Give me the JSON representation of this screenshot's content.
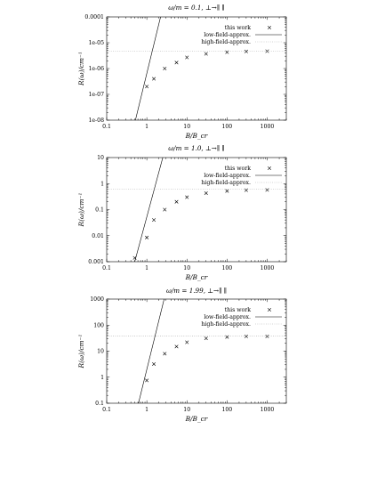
{
  "chart_data": [
    {
      "type": "scatter",
      "title": "ω/m = 0.1, ⊥→∥ ∥",
      "xlabel": "B/B_cr",
      "ylabel": "R(ω)/cm⁻¹",
      "xscale": "log",
      "yscale": "log",
      "xlim": [
        0.1,
        3000
      ],
      "ylim": [
        1e-08,
        0.0001
      ],
      "x_ticks": [
        "0.1",
        "1",
        "10",
        "100",
        "1000"
      ],
      "y_ticks": [
        "1e-08",
        "1e-07",
        "1e-06",
        "1e-05",
        "0.0001"
      ],
      "legend_position": "top-right",
      "series": [
        {
          "name": "this work",
          "style": "points-x",
          "points": [
            [
              1,
              2e-07
            ],
            [
              1.5,
              4e-07
            ],
            [
              2.8,
              1e-06
            ],
            [
              5.5,
              1.7e-06
            ],
            [
              10,
              2.7e-06
            ],
            [
              30,
              3.7e-06
            ],
            [
              100,
              4.3e-06
            ],
            [
              300,
              4.6e-06
            ],
            [
              1000,
              4.7e-06
            ]
          ]
        },
        {
          "name": "low-field-approx.",
          "style": "line",
          "points": [
            [
              0.52,
              1e-08
            ],
            [
              2.2,
              0.0001
            ]
          ]
        },
        {
          "name": "high-field-approx.",
          "style": "dotted",
          "points": [
            [
              0.1,
              4.8e-06
            ],
            [
              3000,
              4.8e-06
            ]
          ]
        }
      ]
    },
    {
      "type": "scatter",
      "title": "ω/m = 1.0, ⊥→∥ ∥",
      "xlabel": "B/B_cr",
      "ylabel": "R(ω)/cm⁻¹",
      "xscale": "log",
      "yscale": "log",
      "xlim": [
        0.1,
        3000
      ],
      "ylim": [
        0.001,
        10
      ],
      "x_ticks": [
        "0.1",
        "1",
        "10",
        "100",
        "1000"
      ],
      "y_ticks": [
        "0.001",
        "0.01",
        "0.1",
        "1",
        "10"
      ],
      "legend_position": "top-right",
      "series": [
        {
          "name": "this work",
          "style": "points-x",
          "points": [
            [
              0.5,
              0.0014
            ],
            [
              1,
              0.0085
            ],
            [
              1.5,
              0.04
            ],
            [
              2.8,
              0.1
            ],
            [
              5.5,
              0.2
            ],
            [
              10,
              0.3
            ],
            [
              30,
              0.43
            ],
            [
              100,
              0.52
            ],
            [
              300,
              0.56
            ],
            [
              1000,
              0.57
            ]
          ]
        },
        {
          "name": "low-field-approx.",
          "style": "line",
          "points": [
            [
              0.5,
              0.001
            ],
            [
              2.5,
              10
            ]
          ]
        },
        {
          "name": "high-field-approx.",
          "style": "dotted",
          "points": [
            [
              0.1,
              0.6
            ],
            [
              3000,
              0.6
            ]
          ]
        }
      ]
    },
    {
      "type": "scatter",
      "title": "ω/m = 1.99, ⊥→∥ ∥",
      "xlabel": "B/B_cr",
      "ylabel": "R(ω)/cm⁻¹",
      "xscale": "log",
      "yscale": "log",
      "xlim": [
        0.1,
        3000
      ],
      "ylim": [
        0.1,
        1000
      ],
      "x_ticks": [
        "0.1",
        "1",
        "10",
        "100",
        "1000"
      ],
      "y_ticks": [
        "0.1",
        "1",
        "10",
        "100",
        "1000"
      ],
      "legend_position": "top-right",
      "series": [
        {
          "name": "this work",
          "style": "points-x",
          "points": [
            [
              1,
              0.75
            ],
            [
              1.5,
              3.2
            ],
            [
              2.8,
              8.0
            ],
            [
              5.5,
              15
            ],
            [
              10,
              22
            ],
            [
              30,
              31
            ],
            [
              100,
              35
            ],
            [
              300,
              37
            ],
            [
              1000,
              37
            ]
          ]
        },
        {
          "name": "low-field-approx.",
          "style": "line",
          "points": [
            [
              0.62,
              0.1
            ],
            [
              2.7,
              1000
            ]
          ]
        },
        {
          "name": "high-field-approx.",
          "style": "dotted",
          "points": [
            [
              0.1,
              38
            ],
            [
              3000,
              38
            ]
          ]
        }
      ]
    }
  ]
}
